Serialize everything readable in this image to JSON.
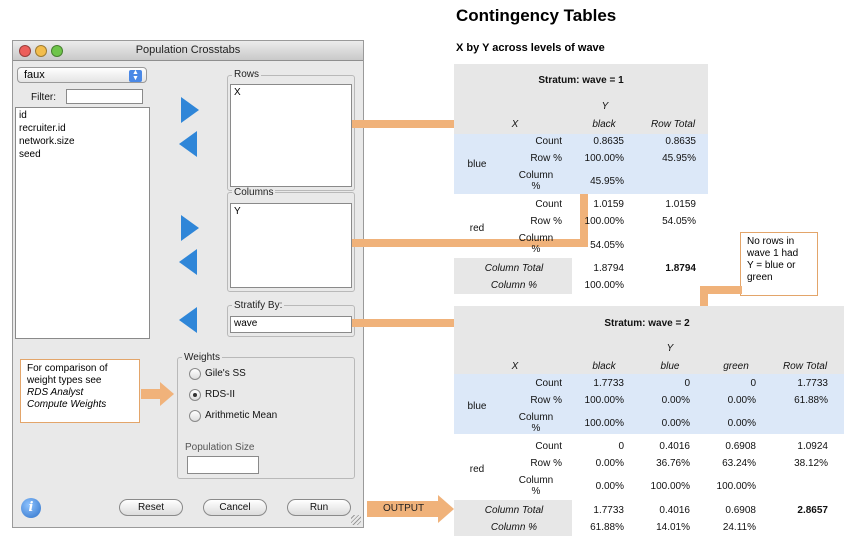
{
  "dialog": {
    "title": "Population Crosstabs",
    "dataset": "faux",
    "filter_label": "Filter:",
    "filter_value": "",
    "variables": [
      "id",
      "recruiter.id",
      "network.size",
      "seed"
    ],
    "rows_label": "Rows",
    "rows_items": [
      "X"
    ],
    "columns_label": "Columns",
    "columns_items": [
      "Y"
    ],
    "stratify_label": "Stratify By:",
    "stratify_value": "wave",
    "weights_label": "Weights",
    "weights_options": [
      "Gile's SS",
      "RDS-II",
      "Arithmetic Mean"
    ],
    "weights_selected": "RDS-II",
    "popsize_label": "Population Size",
    "popsize_value": "",
    "buttons": {
      "reset": "Reset",
      "cancel": "Cancel",
      "run": "Run"
    }
  },
  "callouts": {
    "weights_note_l1": "For comparison of",
    "weights_note_l2": "weight types see",
    "weights_note_l3": "RDS Analyst",
    "weights_note_l4": "Compute Weights",
    "norows_l1": "No rows in",
    "norows_l2": "wave 1 had",
    "norows_l3": "Y = blue or",
    "norows_l4": "green",
    "output": "OUTPUT"
  },
  "output": {
    "title": "Contingency Tables",
    "subtitle": "X by Y across levels of wave",
    "stratum1": {
      "header": "Stratum: wave = 1",
      "var_col": "Y",
      "var_row": "X",
      "col_black": "black",
      "col_total": "Row Total",
      "blue": "blue",
      "red": "red",
      "count": "Count",
      "rowpct": "Row %",
      "colpct_l1": "Column",
      "colpct_l2": "%",
      "blue_count": "0.8635",
      "blue_count_total": "0.8635",
      "blue_row": "100.00%",
      "blue_row_total": "45.95%",
      "blue_col": "45.95%",
      "red_count": "1.0159",
      "red_count_total": "1.0159",
      "red_row": "100.00%",
      "red_row_total": "54.05%",
      "red_col": "54.05%",
      "coltotal_label": "Column Total",
      "coltotal_black": "1.8794",
      "coltotal_total": "1.8794",
      "colpct_label": "Column %",
      "colpct_black": "100.00%"
    },
    "stratum2": {
      "header": "Stratum: wave = 2",
      "var_col": "Y",
      "var_row": "X",
      "col_black": "black",
      "col_blue": "blue",
      "col_green": "green",
      "col_total": "Row Total",
      "blue": "blue",
      "red": "red",
      "count": "Count",
      "rowpct": "Row %",
      "colpct_l1": "Column",
      "colpct_l2": "%",
      "blue_count": [
        "1.7733",
        "0",
        "0",
        "1.7733"
      ],
      "blue_row": [
        "100.00%",
        "0.00%",
        "0.00%",
        "61.88%"
      ],
      "blue_col": [
        "100.00%",
        "0.00%",
        "0.00%"
      ],
      "red_count": [
        "0",
        "0.4016",
        "0.6908",
        "1.0924"
      ],
      "red_row": [
        "0.00%",
        "36.76%",
        "63.24%",
        "38.12%"
      ],
      "red_col": [
        "0.00%",
        "100.00%",
        "100.00%"
      ],
      "coltotal_label": "Column Total",
      "coltotal": [
        "1.7733",
        "0.4016",
        "0.6908",
        "2.8657"
      ],
      "colpct_label": "Column %",
      "colpct": [
        "61.88%",
        "14.01%",
        "24.11%"
      ]
    }
  }
}
